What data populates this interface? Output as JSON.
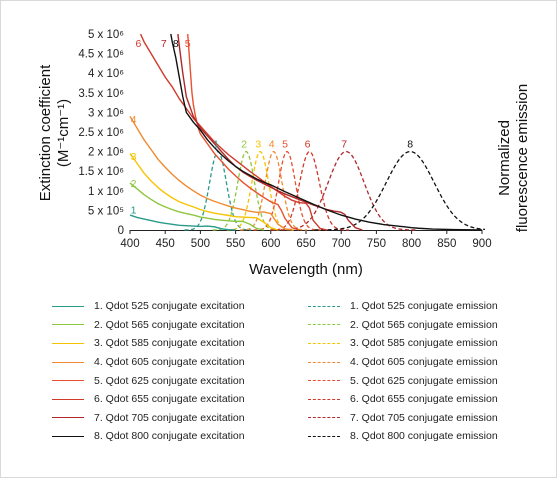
{
  "chart_data": {
    "type": "line",
    "xlabel": "Wavelength (nm)",
    "ylabel_line1": "Extinction coefficient",
    "ylabel_line2": "(M⁻¹cm⁻¹)",
    "ylabel_right_line1": "Normalized",
    "ylabel_right_line2": "fluorescence emission",
    "xlim": [
      400,
      900
    ],
    "ylim": [
      0,
      5000000
    ],
    "x_ticks": [
      400,
      450,
      500,
      550,
      600,
      650,
      700,
      750,
      800,
      850,
      900
    ],
    "x_tick_labels": [
      "400",
      "450",
      "500",
      "550",
      "600",
      "650",
      "700",
      "750",
      "800",
      "850",
      "900"
    ],
    "y_ticks": [
      0,
      500000,
      1000000,
      1500000,
      2000000,
      2500000,
      3000000,
      3500000,
      4000000,
      4500000,
      5000000
    ],
    "y_tick_labels": [
      "0",
      "5 x 10⁵",
      "1 x 10⁶",
      "1.5 x 10⁶",
      "2 x 10⁶",
      "2.5 x 10⁶",
      "3 x 10⁶",
      "3.5 x 10⁶",
      "4 x 10⁶",
      "4.5 x 10⁶",
      "5 x 10⁶"
    ],
    "grid": false,
    "colors": [
      "#2a9a8a",
      "#8dc63f",
      "#f5c400",
      "#f08a30",
      "#e8502e",
      "#d03a2a",
      "#b0282a",
      "#111111"
    ],
    "excitation": [
      {
        "name": "1. Qdot 525 conjugate excitation",
        "label": "1",
        "x": [
          400,
          410,
          420,
          430,
          440,
          450,
          460,
          470,
          480,
          490,
          500,
          510,
          520,
          530,
          540,
          550
        ],
        "y": [
          380000,
          320000,
          280000,
          240000,
          200000,
          170000,
          145000,
          120000,
          110000,
          100000,
          90000,
          100000,
          80000,
          30000,
          8000,
          0
        ]
      },
      {
        "name": "2. Qdot 565 conjugate excitation",
        "label": "2",
        "x": [
          400,
          410,
          420,
          430,
          440,
          450,
          460,
          470,
          480,
          490,
          500,
          510,
          520,
          530,
          540,
          550,
          560,
          570,
          580,
          590
        ],
        "y": [
          1200000,
          1050000,
          900000,
          780000,
          670000,
          590000,
          520000,
          460000,
          420000,
          380000,
          330000,
          300000,
          270000,
          250000,
          235000,
          220000,
          220000,
          150000,
          40000,
          0
        ]
      },
      {
        "name": "3. Qdot 585 conjugate excitation",
        "label": "3",
        "x": [
          400,
          410,
          420,
          430,
          440,
          450,
          460,
          470,
          480,
          490,
          500,
          510,
          520,
          530,
          540,
          550,
          560,
          570,
          580,
          590,
          600,
          610
        ],
        "y": [
          1950000,
          1700000,
          1450000,
          1250000,
          1080000,
          940000,
          820000,
          720000,
          650000,
          590000,
          520000,
          470000,
          430000,
          400000,
          370000,
          340000,
          330000,
          320000,
          310000,
          200000,
          60000,
          0
        ]
      },
      {
        "name": "4. Qdot 605 conjugate excitation",
        "label": "4",
        "x": [
          400,
          410,
          420,
          430,
          440,
          450,
          460,
          470,
          480,
          490,
          500,
          510,
          520,
          530,
          540,
          550,
          560,
          570,
          580,
          590,
          600,
          610,
          620,
          630
        ],
        "y": [
          2900000,
          2600000,
          2300000,
          2050000,
          1800000,
          1600000,
          1420000,
          1260000,
          1120000,
          1000000,
          890000,
          800000,
          730000,
          670000,
          610000,
          560000,
          520000,
          480000,
          450000,
          460000,
          420000,
          150000,
          30000,
          0
        ]
      },
      {
        "name": "5. Qdot 625 conjugate excitation",
        "label": "5",
        "x": [
          482,
          484,
          486,
          488,
          490,
          493,
          497,
          500,
          510,
          520,
          530,
          540,
          550,
          560,
          570,
          580,
          590,
          600,
          605,
          610,
          615,
          620,
          630,
          640
        ],
        "y": [
          5000000,
          4500000,
          4000000,
          3500000,
          3200000,
          2900000,
          2600000,
          2450000,
          2200000,
          1950000,
          1750000,
          1550000,
          1380000,
          1220000,
          1080000,
          950000,
          830000,
          720000,
          680000,
          650000,
          500000,
          300000,
          60000,
          0
        ]
      },
      {
        "name": "6. Qdot 655 conjugate excitation",
        "label": "6",
        "x": [
          415,
          420,
          430,
          440,
          450,
          460,
          470,
          480,
          490,
          500,
          510,
          520,
          530,
          540,
          550,
          560,
          570,
          580,
          590,
          600,
          610,
          620,
          630,
          640,
          645,
          650,
          655,
          660,
          670,
          680
        ],
        "y": [
          5000000,
          4800000,
          4500000,
          4200000,
          3900000,
          3650000,
          3350000,
          3100000,
          2850000,
          2650000,
          2450000,
          2250000,
          2080000,
          1920000,
          1780000,
          1640000,
          1500000,
          1370000,
          1240000,
          1110000,
          980000,
          860000,
          760000,
          700000,
          690000,
          680000,
          560000,
          250000,
          40000,
          0
        ]
      },
      {
        "name": "7. Qdot 705 conjugate excitation",
        "label": "7",
        "x": [
          468,
          470,
          475,
          480,
          490,
          500,
          510,
          520,
          530,
          540,
          550,
          560,
          570,
          580,
          590,
          600,
          610,
          620,
          630,
          640,
          650,
          660,
          670,
          680,
          690,
          695,
          700,
          705,
          710,
          720,
          730
        ],
        "y": [
          5000000,
          4700000,
          4000000,
          3400000,
          2900000,
          2600000,
          2400000,
          2200000,
          2000000,
          1800000,
          1620000,
          1480000,
          1370000,
          1270000,
          1180000,
          1090000,
          1000000,
          920000,
          850000,
          780000,
          710000,
          640000,
          580000,
          520000,
          480000,
          470000,
          450000,
          400000,
          250000,
          60000,
          0
        ]
      },
      {
        "name": "8. Qdot 800 conjugate excitation",
        "label": "8",
        "x": [
          458,
          460,
          465,
          470,
          475,
          480,
          490,
          500,
          510,
          520,
          530,
          540,
          550,
          560,
          570,
          580,
          590,
          600,
          620,
          640,
          660,
          680,
          700,
          720,
          740,
          760,
          780,
          790,
          800,
          810,
          830,
          860,
          900
        ],
        "y": [
          5000000,
          4800000,
          4400000,
          3900000,
          3400000,
          3000000,
          2750000,
          2550000,
          2300000,
          2100000,
          1920000,
          1760000,
          1620000,
          1500000,
          1400000,
          1300000,
          1220000,
          1150000,
          980000,
          820000,
          660000,
          510000,
          380000,
          280000,
          200000,
          140000,
          100000,
          80000,
          60000,
          45000,
          25000,
          10000,
          0
        ]
      }
    ],
    "emission": [
      {
        "name": "1. Qdot 525 conjugate emission",
        "label": "1",
        "peak": 525,
        "fwhm": 28,
        "height": 2000000
      },
      {
        "name": "2. Qdot 565 conjugate emission",
        "label": "2",
        "peak": 565,
        "fwhm": 28,
        "height": 2000000
      },
      {
        "name": "3. Qdot 585 conjugate emission",
        "label": "3",
        "peak": 585,
        "fwhm": 28,
        "height": 2000000
      },
      {
        "name": "4. Qdot 605 conjugate emission",
        "label": "4",
        "peak": 604,
        "fwhm": 28,
        "height": 2000000
      },
      {
        "name": "5. Qdot 625 conjugate emission",
        "label": "5",
        "peak": 623,
        "fwhm": 28,
        "height": 2000000
      },
      {
        "name": "6. Qdot 655 conjugate emission",
        "label": "6",
        "peak": 655,
        "fwhm": 33,
        "height": 2000000
      },
      {
        "name": "7. Qdot 705 conjugate emission",
        "label": "7",
        "peak": 707,
        "fwhm": 60,
        "height": 2000000
      },
      {
        "name": "8. Qdot 800 conjugate emission",
        "label": "8",
        "peak": 798,
        "fwhm": 80,
        "height": 2000000
      }
    ],
    "excitation_label_anchors": [
      {
        "label": "1",
        "x": 405,
        "y": 420000
      },
      {
        "label": "2",
        "x": 405,
        "y": 1100000
      },
      {
        "label": "3",
        "x": 405,
        "y": 1790000
      },
      {
        "label": "4",
        "x": 405,
        "y": 2730000
      },
      {
        "label": "5",
        "x": 482,
        "y": 4670000
      },
      {
        "label": "6",
        "x": 412,
        "y": 4670000
      },
      {
        "label": "7",
        "x": 448,
        "y": 4670000
      },
      {
        "label": "8",
        "x": 465,
        "y": 4670000
      }
    ]
  }
}
